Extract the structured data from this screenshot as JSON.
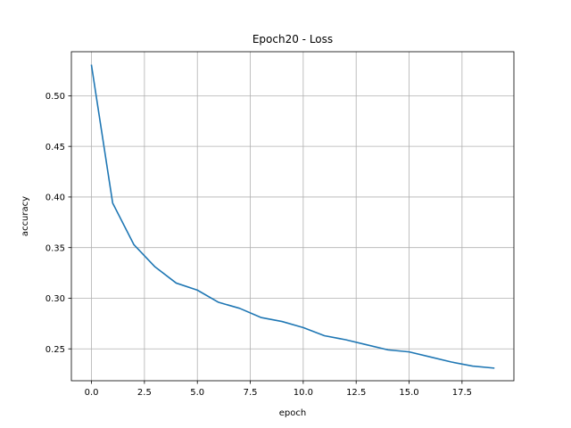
{
  "chart_data": {
    "type": "line",
    "title": "Epoch20 - Loss",
    "xlabel": "epoch",
    "ylabel": "accuracy",
    "xlim": [
      -0.95,
      19.95
    ],
    "ylim": [
      0.2185,
      0.5435
    ],
    "xticks": [
      "0.0",
      "2.5",
      "5.0",
      "7.5",
      "10.0",
      "12.5",
      "15.0",
      "17.5"
    ],
    "xtick_values": [
      0,
      2.5,
      5,
      7.5,
      10,
      12.5,
      15,
      17.5
    ],
    "yticks": [
      "0.25",
      "0.30",
      "0.35",
      "0.40",
      "0.45",
      "0.50"
    ],
    "ytick_values": [
      0.25,
      0.3,
      0.35,
      0.4,
      0.45,
      0.5
    ],
    "grid": true,
    "line_color": "#1f77b4",
    "grid_color": "#b0b0b0",
    "series": [
      {
        "x": [
          0,
          1,
          2,
          3,
          4,
          5,
          6,
          7,
          8,
          9,
          10,
          11,
          12,
          13,
          14,
          15,
          16,
          17,
          18,
          19
        ],
        "values": [
          0.53,
          0.394,
          0.353,
          0.331,
          0.315,
          0.308,
          0.296,
          0.29,
          0.281,
          0.277,
          0.271,
          0.263,
          0.259,
          0.254,
          0.249,
          0.247,
          0.242,
          0.237,
          0.233,
          0.231
        ]
      }
    ]
  }
}
